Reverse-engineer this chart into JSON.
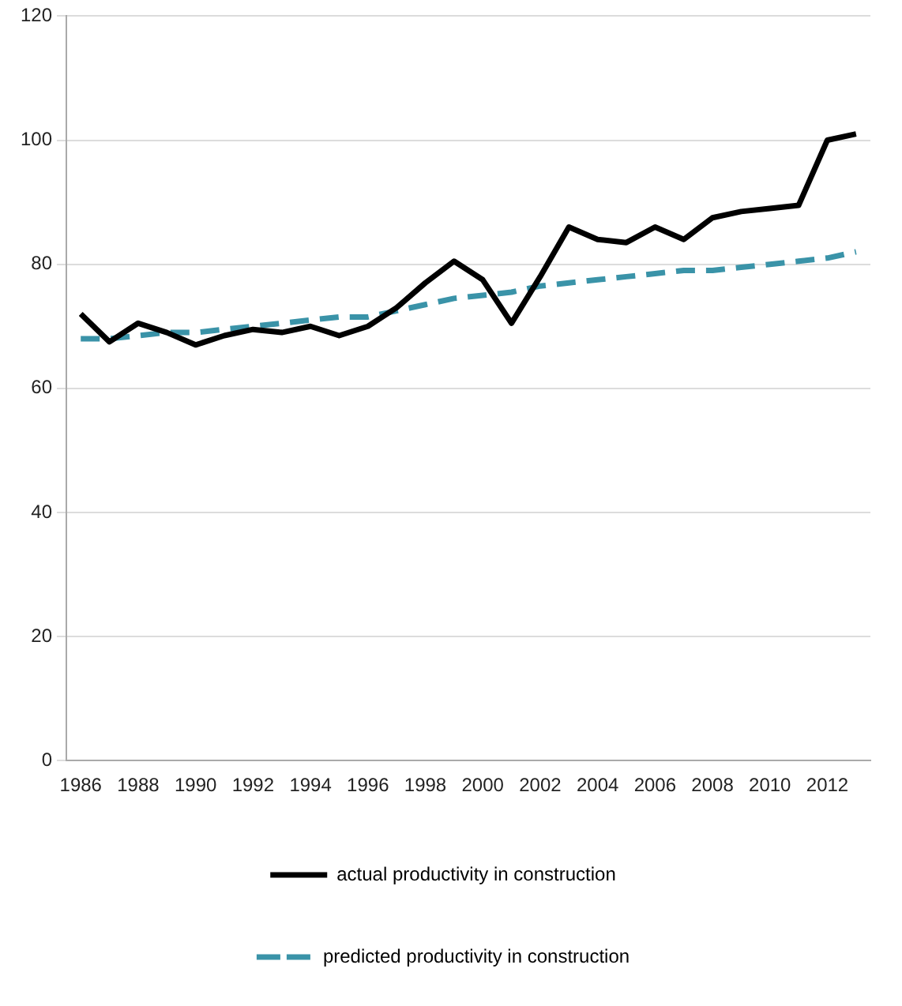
{
  "chart_data": {
    "type": "line",
    "categories": [
      "1986",
      null,
      "1988",
      null,
      "1990",
      null,
      "1992",
      null,
      "1994",
      null,
      "1996",
      null,
      "1998",
      null,
      "2000",
      null,
      "2002",
      null,
      "2004",
      null,
      "2006",
      null,
      "2008",
      null,
      "2010",
      null,
      "2012",
      null
    ],
    "series": [
      {
        "name": "actual productivity in construction",
        "color": "#000000",
        "line_style": "solid",
        "values": [
          72,
          67.5,
          70.5,
          69,
          67,
          68.5,
          69.5,
          69,
          70,
          68.5,
          70,
          73,
          77,
          80.5,
          77.5,
          70.5,
          78,
          86,
          84,
          83.5,
          86,
          84,
          87.5,
          88.5,
          89,
          89.5,
          100,
          101
        ]
      },
      {
        "name": "predicted productivity in construction",
        "color": "#3a93a8",
        "line_style": "dashed",
        "values": [
          68,
          68,
          68.5,
          69,
          69,
          69.5,
          70,
          70.5,
          71,
          71.5,
          71.5,
          72.5,
          73.5,
          74.5,
          75,
          75.5,
          76.5,
          77,
          77.5,
          78,
          78.5,
          79,
          79,
          79.5,
          80,
          80.5,
          81,
          82
        ]
      }
    ],
    "ylim": [
      0,
      120
    ],
    "yticks": [
      0,
      20,
      40,
      60,
      80,
      100,
      120
    ],
    "grid": "y",
    "legend": "bottom",
    "marker": "none"
  }
}
